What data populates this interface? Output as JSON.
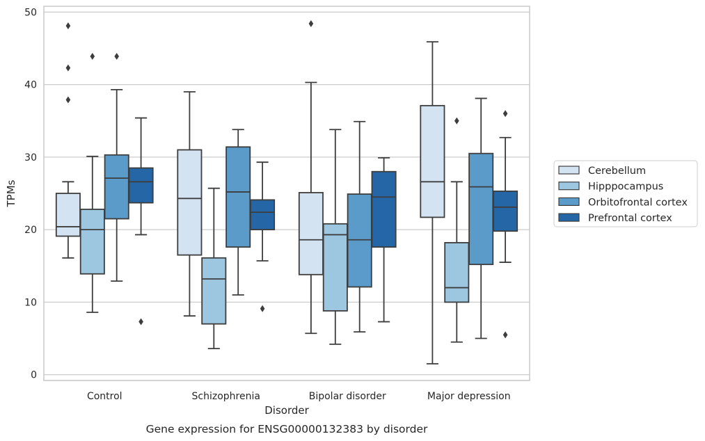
{
  "chart_data": {
    "type": "box",
    "xlabel": "Disorder",
    "ylabel": "TPMs",
    "caption": "Gene expression for ENSG00000132383 by disorder",
    "ylim": [
      -0.8,
      50.8
    ],
    "yticks": [
      0,
      10,
      20,
      30,
      40,
      50
    ],
    "grid": "horizontal",
    "legend_position": "right",
    "categories": [
      "Control",
      "Schizophrenia",
      "Bipolar disorder",
      "Major depression"
    ],
    "series": [
      {
        "name": "Cerebellum",
        "color": "#d3e3f2",
        "boxes": [
          {
            "q1": 19.1,
            "median": 20.4,
            "q3": 25.0,
            "whisker_low": 16.1,
            "whisker_high": 26.6,
            "outliers": [
              48.1,
              42.3,
              37.9
            ]
          },
          {
            "q1": 16.5,
            "median": 24.3,
            "q3": 31.0,
            "whisker_low": 8.1,
            "whisker_high": 39.0,
            "outliers": []
          },
          {
            "q1": 13.8,
            "median": 18.6,
            "q3": 25.1,
            "whisker_low": 5.7,
            "whisker_high": 40.3,
            "outliers": [
              48.4
            ]
          },
          {
            "q1": 21.7,
            "median": 26.6,
            "q3": 37.1,
            "whisker_low": 1.5,
            "whisker_high": 45.9,
            "outliers": []
          }
        ]
      },
      {
        "name": "Hipppocampus",
        "color": "#9dc7e0",
        "boxes": [
          {
            "q1": 13.9,
            "median": 20.0,
            "q3": 22.8,
            "whisker_low": 8.6,
            "whisker_high": 30.1,
            "outliers": [
              43.9
            ]
          },
          {
            "q1": 7.0,
            "median": 13.2,
            "q3": 16.1,
            "whisker_low": 3.6,
            "whisker_high": 25.7,
            "outliers": []
          },
          {
            "q1": 8.8,
            "median": 19.3,
            "q3": 20.8,
            "whisker_low": 4.2,
            "whisker_high": 33.8,
            "outliers": []
          },
          {
            "q1": 10.0,
            "median": 12.0,
            "q3": 18.2,
            "whisker_low": 4.5,
            "whisker_high": 26.6,
            "outliers": [
              35.0
            ]
          }
        ]
      },
      {
        "name": "Orbitofrontal cortex",
        "color": "#5a9bc9",
        "boxes": [
          {
            "q1": 21.5,
            "median": 27.1,
            "q3": 30.3,
            "whisker_low": 12.9,
            "whisker_high": 39.3,
            "outliers": [
              43.9
            ]
          },
          {
            "q1": 17.6,
            "median": 25.2,
            "q3": 31.4,
            "whisker_low": 11.0,
            "whisker_high": 33.8,
            "outliers": []
          },
          {
            "q1": 12.1,
            "median": 18.6,
            "q3": 24.9,
            "whisker_low": 5.9,
            "whisker_high": 34.9,
            "outliers": []
          },
          {
            "q1": 15.2,
            "median": 25.9,
            "q3": 30.5,
            "whisker_low": 5.0,
            "whisker_high": 38.1,
            "outliers": []
          }
        ]
      },
      {
        "name": "Prefrontal cortex",
        "color": "#2567a6",
        "boxes": [
          {
            "q1": 23.7,
            "median": 26.6,
            "q3": 28.5,
            "whisker_low": 19.3,
            "whisker_high": 35.4,
            "outliers": [
              7.3
            ]
          },
          {
            "q1": 20.0,
            "median": 22.4,
            "q3": 24.1,
            "whisker_low": 15.7,
            "whisker_high": 29.3,
            "outliers": [
              9.1
            ]
          },
          {
            "q1": 17.6,
            "median": 24.5,
            "q3": 28.0,
            "whisker_low": 7.3,
            "whisker_high": 29.9,
            "outliers": []
          },
          {
            "q1": 19.8,
            "median": 23.1,
            "q3": 25.3,
            "whisker_low": 15.5,
            "whisker_high": 32.7,
            "outliers": [
              36.0,
              5.5
            ]
          }
        ]
      }
    ]
  }
}
